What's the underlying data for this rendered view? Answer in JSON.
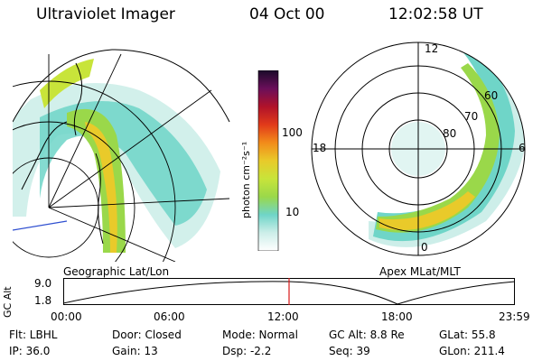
{
  "header": {
    "instrument": "Ultraviolet Imager",
    "date": "04 Oct 00",
    "time": "12:02:58 UT"
  },
  "colors": {
    "aurora_strong": "#e9ca2a",
    "aurora_mid": "#9ad84a",
    "aurora_low": "#6fd5c8",
    "aurora_faint": "#cdeee9",
    "grid": "#000000",
    "time_marker": "#d81818",
    "coast": "#000000",
    "terminator": "#2f4fd0"
  },
  "geo_panel": {
    "caption": "Geographic Lat/Lon"
  },
  "apex_panel": {
    "caption": "Apex MLat/MLT",
    "mlt_labels": {
      "top": "12",
      "left": "18",
      "right": "6",
      "bottom": "0"
    },
    "lat_labels": [
      "60",
      "70",
      "80"
    ]
  },
  "colorbar": {
    "unit_label": "photon cm⁻²s⁻¹",
    "tick_labels": [
      "100",
      "10"
    ],
    "stops": [
      "#ffffff",
      "#cdeee9",
      "#6fd5c8",
      "#9ad84a",
      "#c8e43a",
      "#e9ca2a",
      "#f28b1a",
      "#e13a1a",
      "#b0122a",
      "#6a0f5a",
      "#1a0a2a"
    ]
  },
  "altitude_plot": {
    "y_label": "GC Alt",
    "y_ticks": [
      "9.0",
      "1.8"
    ],
    "x_ticks": [
      "00:00",
      "06:00",
      "12:00",
      "18:00",
      "23:59"
    ],
    "current_time": "12:02:58"
  },
  "footer": {
    "row1": {
      "flt": "Flt: LBHL",
      "door": "Door: Closed",
      "mode": "Mode: Normal",
      "gcalt": "GC Alt: 8.8 Re",
      "glat": "GLat:  55.8"
    },
    "row2": {
      "ip": "IP: 36.0",
      "gain": "Gain: 13",
      "dsp": "Dsp:   -2.2",
      "seq": "Seq: 39",
      "glon": "GLon: 211.4"
    }
  }
}
